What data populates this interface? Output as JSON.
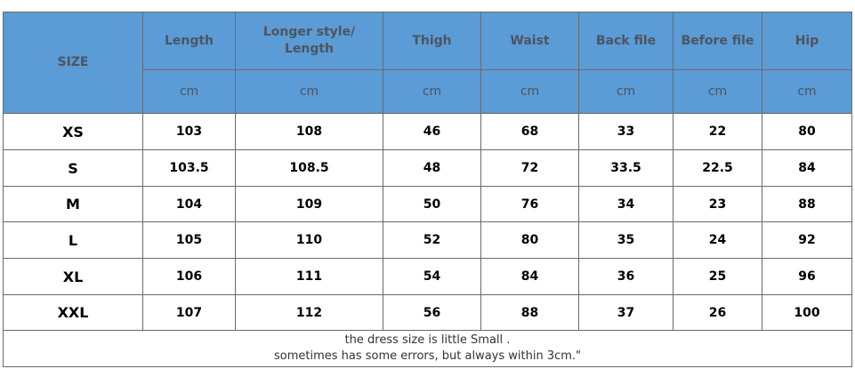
{
  "table": {
    "size_label": "SIZE",
    "columns": [
      "Length",
      "Longer style/\nLength",
      "Thigh",
      "Waist",
      "Back file",
      "Before file",
      "Hip"
    ],
    "units": [
      "cm",
      "cm",
      "cm",
      "cm",
      "cm",
      "cm",
      "cm"
    ],
    "rows": [
      [
        "XS",
        "103",
        "108",
        "46",
        "68",
        "33",
        "22",
        "80"
      ],
      [
        "S",
        "103.5",
        "108.5",
        "48",
        "72",
        "33.5",
        "22.5",
        "84"
      ],
      [
        "M",
        "104",
        "109",
        "50",
        "76",
        "34",
        "23",
        "88"
      ],
      [
        "L",
        "105",
        "110",
        "52",
        "80",
        "35",
        "24",
        "92"
      ],
      [
        "XL",
        "106",
        "111",
        "54",
        "84",
        "36",
        "25",
        "96"
      ],
      [
        "XXL",
        "107",
        "112",
        "56",
        "88",
        "37",
        "26",
        "100"
      ]
    ]
  },
  "footer": [
    "the dress size is little Small .",
    "sometimes has some errors, but always within 3cm.\""
  ]
}
